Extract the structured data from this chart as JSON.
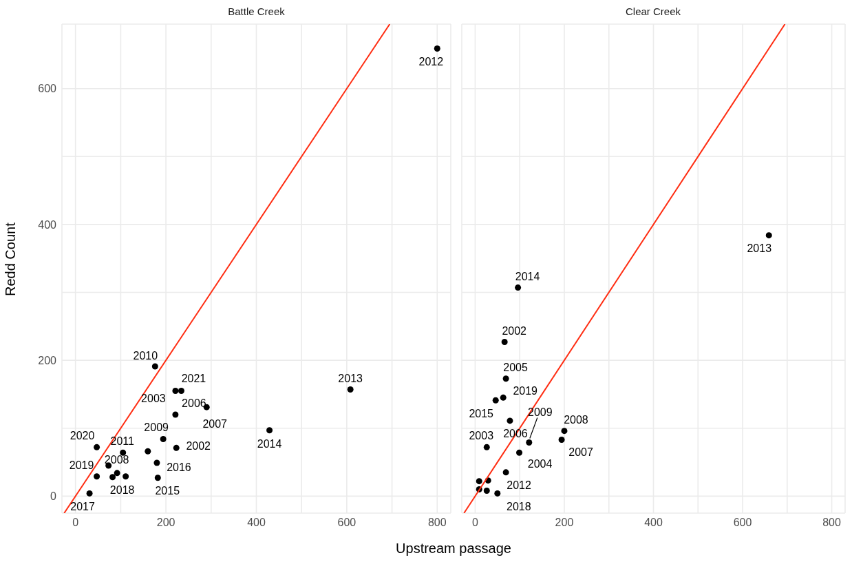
{
  "chart_data": [
    {
      "type": "scatter",
      "title": "Battle Creek",
      "xlabel": "Upstream passage",
      "ylabel": "Redd Count",
      "xlim": [
        -30,
        830
      ],
      "ylim": [
        -25,
        695
      ],
      "xticks": [
        0,
        {
          "value": 100,
          "label": null
        },
        200,
        {
          "value": 300,
          "label": null
        },
        400,
        {
          "value": 500,
          "label": null
        },
        600,
        {
          "value": 700,
          "label": null
        },
        800
      ],
      "yticks": [
        0,
        {
          "value": 100,
          "label": null
        },
        200,
        {
          "value": 300,
          "label": null
        },
        400,
        {
          "value": 500,
          "label": null
        },
        600
      ],
      "grid": true,
      "marker": "circle",
      "series": [
        {
          "color": "#000000",
          "x": [
            800,
            608,
            429,
            176,
            234,
            221,
            221,
            290,
            194,
            223,
            180,
            182,
            47,
            105,
            73,
            47,
            111,
            31,
            160,
            82,
            92
          ],
          "values": [
            659,
            157,
            97,
            191,
            155,
            155,
            120,
            131,
            84,
            71,
            49,
            27,
            72,
            64,
            45,
            29,
            29,
            4,
            66,
            28,
            34
          ]
        },
        {
          "type": "line",
          "marker": "none",
          "color": "#ff2d12",
          "x": [
            -25,
            695
          ],
          "values": [
            -25,
            695
          ]
        }
      ],
      "annotations": [
        {
          "text": "2012",
          "x": 800,
          "y": 659
        },
        {
          "text": "2013",
          "x": 608,
          "y": 157
        },
        {
          "text": "2014",
          "x": 429,
          "y": 97
        },
        {
          "text": "2010",
          "x": 176,
          "y": 191
        },
        {
          "text": "2021",
          "x": 234,
          "y": 155
        },
        {
          "text": "2003",
          "x": 221,
          "y": 155
        },
        {
          "text": "2006",
          "x": 221,
          "y": 120
        },
        {
          "text": "2007",
          "x": 290,
          "y": 131
        },
        {
          "text": "2009",
          "x": 194,
          "y": 84
        },
        {
          "text": "2002",
          "x": 223,
          "y": 71
        },
        {
          "text": "2016",
          "x": 180,
          "y": 49
        },
        {
          "text": "2015",
          "x": 182,
          "y": 27
        },
        {
          "text": "2020",
          "x": 47,
          "y": 72
        },
        {
          "text": "2011",
          "x": 105,
          "y": 64
        },
        {
          "text": "2008",
          "x": 73,
          "y": 45
        },
        {
          "text": "2019",
          "x": 47,
          "y": 29
        },
        {
          "text": "2018",
          "x": 111,
          "y": 29
        },
        {
          "text": "2017",
          "x": 31,
          "y": 4
        }
      ]
    },
    {
      "type": "scatter",
      "title": "Clear Creek",
      "xlim": [
        -30,
        830
      ],
      "ylim": [
        -25,
        695
      ],
      "tick_labels": "x",
      "xticks": [
        0,
        {
          "value": 100,
          "label": null
        },
        200,
        {
          "value": 300,
          "label": null
        },
        400,
        {
          "value": 500,
          "label": null
        },
        600,
        {
          "value": 700,
          "label": null
        },
        800
      ],
      "yticks": [
        0,
        {
          "value": 100,
          "label": null
        },
        200,
        {
          "value": 300,
          "label": null
        },
        400,
        {
          "value": 500,
          "label": null
        },
        600
      ],
      "grid": true,
      "marker": "circle",
      "series": [
        {
          "color": "#000000",
          "x": [
            659,
            96,
            66,
            69,
            63,
            46,
            78,
            121,
            200,
            194,
            26,
            99,
            69,
            50,
            9,
            29,
            9,
            26
          ],
          "values": [
            384,
            307,
            227,
            173,
            145,
            141,
            111,
            79,
            96,
            83,
            72,
            64,
            35,
            4,
            22,
            23,
            10,
            8
          ]
        },
        {
          "type": "line",
          "marker": "none",
          "color": "#ff2d12",
          "x": [
            -25,
            695
          ],
          "values": [
            -25,
            695
          ]
        }
      ],
      "annotations": [
        {
          "text": "2013",
          "x": 659,
          "y": 384
        },
        {
          "text": "2014",
          "x": 96,
          "y": 307
        },
        {
          "text": "2002",
          "x": 66,
          "y": 227
        },
        {
          "text": "2005",
          "x": 69,
          "y": 173
        },
        {
          "text": "2019",
          "x": 63,
          "y": 145
        },
        {
          "text": "2015",
          "x": 46,
          "y": 141
        },
        {
          "text": "2006",
          "x": 78,
          "y": 111
        },
        {
          "text": "2009",
          "x": 121,
          "y": 79
        },
        {
          "text": "2008",
          "x": 200,
          "y": 96
        },
        {
          "text": "2007",
          "x": 194,
          "y": 83
        },
        {
          "text": "2003",
          "x": 26,
          "y": 72
        },
        {
          "text": "2004",
          "x": 99,
          "y": 64
        },
        {
          "text": "2012",
          "x": 69,
          "y": 35
        },
        {
          "text": "2018",
          "x": 50,
          "y": 4
        }
      ]
    }
  ]
}
